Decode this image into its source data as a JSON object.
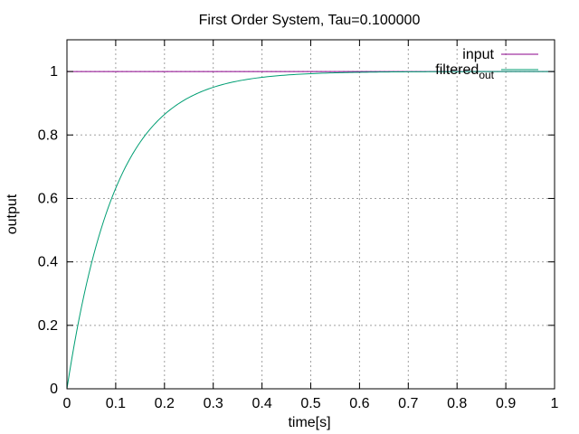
{
  "chart_data": {
    "type": "line",
    "title": "First Order System, Tau=0.100000",
    "xlabel": "time[s]",
    "ylabel": "output",
    "xlim": [
      0,
      1
    ],
    "ylim": [
      0,
      1.1
    ],
    "grid": true,
    "legend_position": "top-right",
    "x_ticks": [
      {
        "value": 0,
        "label": "0"
      },
      {
        "value": 0.1,
        "label": "0.1"
      },
      {
        "value": 0.2,
        "label": "0.2"
      },
      {
        "value": 0.3,
        "label": "0.3"
      },
      {
        "value": 0.4,
        "label": "0.4"
      },
      {
        "value": 0.5,
        "label": "0.5"
      },
      {
        "value": 0.6,
        "label": "0.6"
      },
      {
        "value": 0.7,
        "label": "0.7"
      },
      {
        "value": 0.8,
        "label": "0.8"
      },
      {
        "value": 0.9,
        "label": "0.9"
      },
      {
        "value": 1,
        "label": "1"
      }
    ],
    "y_ticks": [
      {
        "value": 0,
        "label": "0"
      },
      {
        "value": 0.2,
        "label": "0.2"
      },
      {
        "value": 0.4,
        "label": "0.4"
      },
      {
        "value": 0.6,
        "label": "0.6"
      },
      {
        "value": 0.8,
        "label": "0.8"
      },
      {
        "value": 1,
        "label": "1"
      }
    ],
    "series": [
      {
        "name": "input",
        "name_main": "input",
        "name_sub": "",
        "color": "#8b008b",
        "x": [
          0,
          1
        ],
        "y": [
          1,
          1
        ]
      },
      {
        "name": "filtered_out",
        "name_main": "filtered",
        "name_sub": "out",
        "color": "#009e73",
        "x": [
          0,
          0.05,
          0.1,
          0.15,
          0.2,
          0.25,
          0.3,
          0.35,
          0.4,
          0.45,
          0.5,
          0.55,
          0.6,
          0.65,
          0.7,
          0.75,
          0.8,
          0.85,
          0.9,
          0.95,
          1.0
        ],
        "y": [
          0,
          0.393,
          0.632,
          0.777,
          0.865,
          0.918,
          0.95,
          0.97,
          0.982,
          0.989,
          0.993,
          0.996,
          0.998,
          0.998,
          0.999,
          0.999,
          1.0,
          1.0,
          1.0,
          1.0,
          1.0
        ]
      }
    ]
  }
}
